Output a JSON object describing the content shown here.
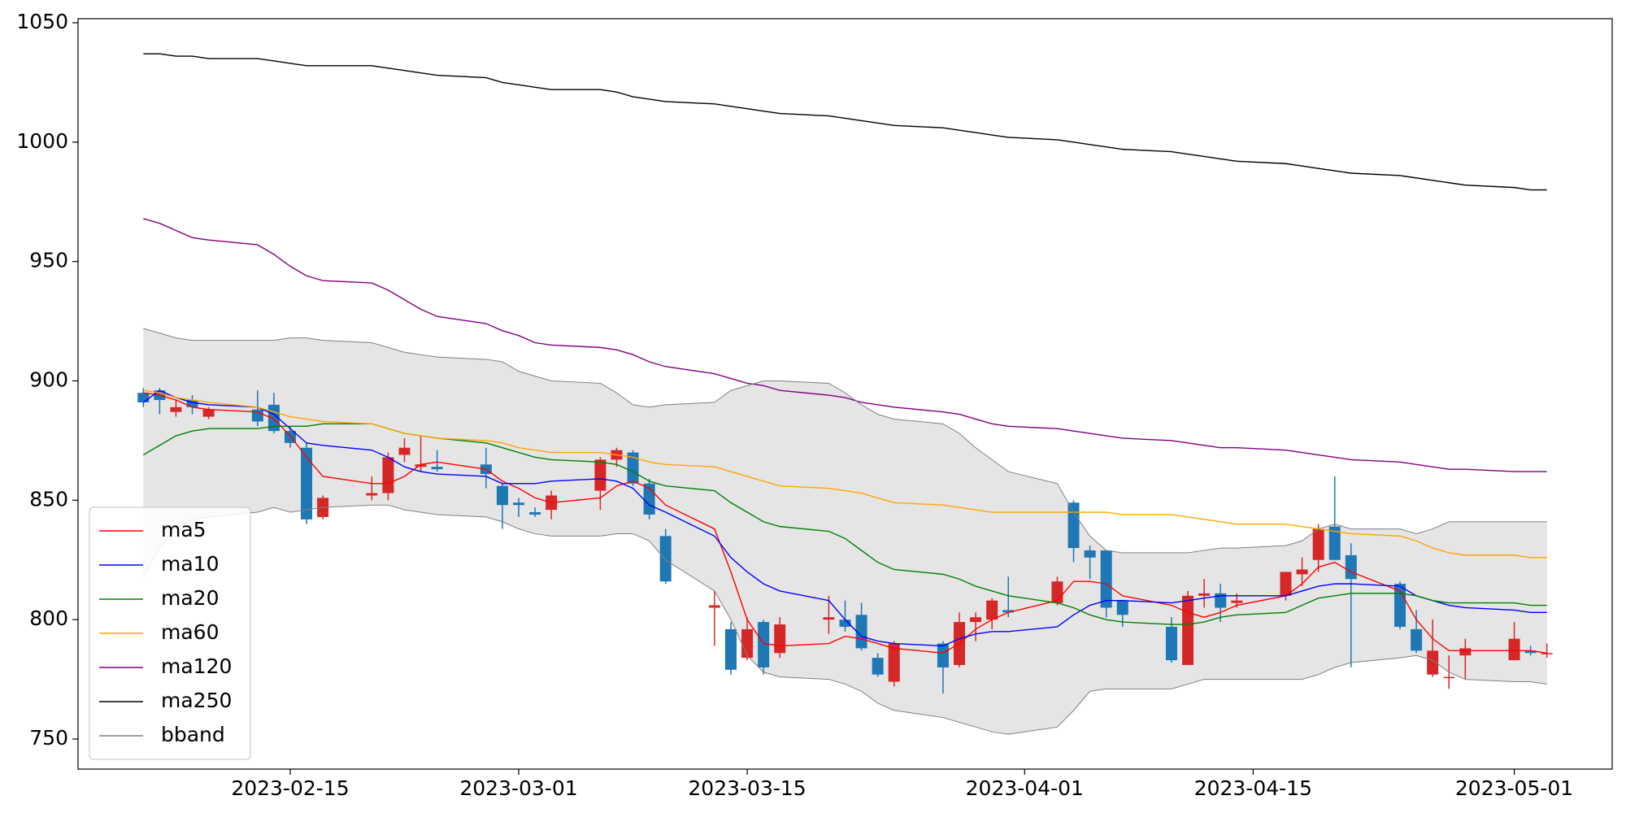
{
  "chart_data": {
    "type": "candlestick",
    "x": [
      "2023-02-06",
      "2023-02-07",
      "2023-02-08",
      "2023-02-09",
      "2023-02-10",
      "2023-02-13",
      "2023-02-14",
      "2023-02-15",
      "2023-02-16",
      "2023-02-17",
      "2023-02-20",
      "2023-02-21",
      "2023-02-22",
      "2023-02-23",
      "2023-02-24",
      "2023-02-27",
      "2023-02-28",
      "2023-03-01",
      "2023-03-02",
      "2023-03-03",
      "2023-03-06",
      "2023-03-07",
      "2023-03-08",
      "2023-03-09",
      "2023-03-10",
      "2023-03-13",
      "2023-03-14",
      "2023-03-15",
      "2023-03-16",
      "2023-03-17",
      "2023-03-20",
      "2023-03-21",
      "2023-03-22",
      "2023-03-23",
      "2023-03-24",
      "2023-03-27",
      "2023-03-28",
      "2023-03-29",
      "2023-03-30",
      "2023-03-31",
      "2023-04-03",
      "2023-04-04",
      "2023-04-05",
      "2023-04-06",
      "2023-04-07",
      "2023-04-10",
      "2023-04-11",
      "2023-04-12",
      "2023-04-13",
      "2023-04-14",
      "2023-04-17",
      "2023-04-18",
      "2023-04-19",
      "2023-04-20",
      "2023-04-21",
      "2023-04-24",
      "2023-04-25",
      "2023-04-26",
      "2023-04-27",
      "2023-04-28",
      "2023-05-01",
      "2023-05-02",
      "2023-05-03"
    ],
    "open": [
      895,
      896,
      887,
      892,
      885,
      888,
      890,
      879,
      872,
      843,
      852,
      853,
      869,
      864,
      864,
      865,
      856,
      849,
      845,
      846,
      854,
      867,
      870,
      857,
      835,
      805,
      796,
      784,
      799,
      786,
      800,
      800,
      802,
      784,
      774,
      790,
      781,
      799,
      800,
      804,
      807,
      849,
      829,
      829,
      808,
      797,
      781,
      810,
      811,
      807,
      810,
      819,
      825,
      839,
      827,
      815,
      796,
      777,
      776,
      785,
      783,
      787,
      786
    ],
    "high": [
      897,
      897,
      892,
      894,
      889,
      896,
      895,
      881,
      874,
      852,
      860,
      870,
      876,
      877,
      871,
      872,
      857,
      851,
      847,
      854,
      868,
      872,
      871,
      859,
      838,
      812,
      799,
      801,
      800,
      801,
      810,
      808,
      807,
      786,
      791,
      791,
      803,
      803,
      809,
      818,
      818,
      850,
      831,
      829,
      808,
      801,
      812,
      817,
      815,
      811,
      820,
      826,
      840,
      860,
      832,
      816,
      804,
      800,
      785,
      792,
      799,
      789,
      790
    ],
    "low": [
      889,
      886,
      885,
      886,
      884,
      881,
      878,
      872,
      840,
      842,
      850,
      850,
      866,
      862,
      862,
      855,
      838,
      843,
      843,
      842,
      846,
      864,
      856,
      842,
      815,
      789,
      777,
      783,
      777,
      784,
      794,
      795,
      787,
      776,
      772,
      769,
      780,
      791,
      796,
      801,
      806,
      824,
      817,
      801,
      797,
      782,
      781,
      805,
      799,
      805,
      808,
      814,
      820,
      825,
      780,
      796,
      786,
      776,
      771,
      775,
      783,
      785,
      784
    ],
    "close": [
      891,
      892,
      889,
      889,
      888,
      883,
      879,
      874,
      842,
      851,
      853,
      868,
      872,
      865,
      863,
      861,
      848,
      848,
      844,
      852,
      867,
      871,
      857,
      844,
      816,
      806,
      779,
      796,
      780,
      798,
      801,
      797,
      788,
      777,
      790,
      780,
      799,
      801,
      808,
      803,
      816,
      830,
      826,
      805,
      802,
      783,
      810,
      811,
      805,
      808,
      820,
      821,
      838,
      825,
      817,
      797,
      787,
      787,
      776,
      788,
      792,
      786,
      786
    ],
    "up_color": "#d62728",
    "down_color": "#1f77b4",
    "series": [
      {
        "name": "ma5",
        "color": "#ff0000",
        "values": [
          895,
          894,
          892,
          889,
          888,
          887,
          884,
          877,
          868,
          860,
          857,
          857,
          860,
          865,
          866,
          863,
          858,
          855,
          851,
          849,
          851,
          856,
          858,
          855,
          848,
          838,
          820,
          800,
          790,
          789,
          790,
          793,
          792,
          790,
          788,
          786,
          790,
          796,
          800,
          803,
          808,
          816,
          816,
          815,
          810,
          806,
          803,
          801,
          803,
          806,
          810,
          815,
          822,
          824,
          820,
          812,
          800,
          792,
          787,
          787,
          787,
          787,
          786
        ]
      },
      {
        "name": "ma10",
        "color": "#0000ff",
        "values": [
          891,
          896,
          893,
          891,
          890,
          889,
          886,
          880,
          874,
          873,
          871,
          868,
          864,
          862,
          861,
          860,
          857,
          857,
          857,
          858,
          859,
          858,
          855,
          848,
          845,
          835,
          826,
          820,
          815,
          812,
          808,
          800,
          793,
          791,
          790,
          789,
          792,
          794,
          795,
          795,
          797,
          802,
          806,
          808,
          808,
          807,
          808,
          809,
          810,
          810,
          810,
          812,
          814,
          815,
          815,
          814,
          810,
          808,
          806,
          805,
          804,
          803,
          803
        ]
      },
      {
        "name": "ma20",
        "color": "#008000",
        "values": [
          869,
          873,
          877,
          879,
          880,
          880,
          881,
          881,
          881,
          882,
          882,
          880,
          878,
          877,
          876,
          874,
          872,
          870,
          868,
          867,
          866,
          865,
          862,
          858,
          856,
          854,
          849,
          845,
          841,
          839,
          837,
          834,
          829,
          824,
          821,
          819,
          817,
          814,
          812,
          810,
          807,
          805,
          802,
          800,
          799,
          798,
          798,
          799,
          801,
          802,
          803,
          806,
          809,
          810,
          811,
          811,
          810,
          808,
          807,
          807,
          807,
          806,
          806
        ]
      },
      {
        "name": "ma60",
        "color": "#ffa500",
        "values": [
          896,
          895,
          893,
          892,
          891,
          889,
          887,
          885,
          884,
          883,
          882,
          880,
          878,
          877,
          876,
          875,
          874,
          872,
          871,
          870,
          870,
          869,
          868,
          866,
          865,
          864,
          862,
          860,
          858,
          856,
          855,
          854,
          853,
          851,
          849,
          848,
          847,
          846,
          845,
          845,
          845,
          845,
          845,
          845,
          844,
          844,
          843,
          842,
          841,
          840,
          840,
          839,
          838,
          837,
          836,
          835,
          833,
          830,
          828,
          827,
          827,
          826,
          826
        ]
      },
      {
        "name": "ma120",
        "color": "#800080",
        "values": [
          968,
          966,
          963,
          960,
          959,
          957,
          953,
          948,
          944,
          942,
          941,
          938,
          934,
          930,
          927,
          924,
          921,
          919,
          916,
          915,
          914,
          913,
          911,
          908,
          906,
          903,
          901,
          899,
          898,
          896,
          894,
          893,
          891,
          890,
          889,
          887,
          886,
          884,
          882,
          881,
          880,
          879,
          878,
          877,
          876,
          875,
          874,
          873,
          872,
          872,
          871,
          870,
          869,
          868,
          867,
          866,
          865,
          864,
          863,
          863,
          862,
          862,
          862
        ]
      },
      {
        "name": "ma250",
        "color": "#000000",
        "values": [
          1037,
          1037,
          1036,
          1036,
          1035,
          1035,
          1034,
          1033,
          1032,
          1032,
          1032,
          1031,
          1030,
          1029,
          1028,
          1027,
          1025,
          1024,
          1023,
          1022,
          1022,
          1021,
          1019,
          1018,
          1017,
          1016,
          1015,
          1014,
          1013,
          1012,
          1011,
          1010,
          1009,
          1008,
          1007,
          1006,
          1005,
          1004,
          1003,
          1002,
          1001,
          1000,
          999,
          998,
          997,
          996,
          995,
          994,
          993,
          992,
          991,
          990,
          989,
          988,
          987,
          986,
          985,
          984,
          983,
          982,
          981,
          980,
          980
        ]
      }
    ],
    "band": {
      "name": "bband",
      "color": "#808080",
      "fill": "#e5e5e5",
      "upper": [
        922,
        920,
        918,
        917,
        917,
        917,
        917,
        918,
        918,
        917,
        916,
        914,
        912,
        911,
        910,
        909,
        908,
        904,
        902,
        900,
        899,
        895,
        890,
        889,
        890,
        891,
        896,
        898,
        900,
        900,
        899,
        895,
        890,
        886,
        884,
        882,
        878,
        872,
        867,
        862,
        857,
        845,
        835,
        829,
        828,
        828,
        828,
        829,
        830,
        830,
        831,
        833,
        838,
        840,
        838,
        838,
        836,
        838,
        841,
        841,
        841,
        841,
        841
      ],
      "lower": [
        818,
        830,
        838,
        842,
        843,
        845,
        847,
        845,
        846,
        847,
        848,
        848,
        846,
        845,
        844,
        843,
        841,
        838,
        836,
        835,
        835,
        836,
        836,
        833,
        825,
        812,
        800,
        785,
        778,
        776,
        775,
        773,
        770,
        765,
        762,
        759,
        757,
        755,
        753,
        752,
        755,
        762,
        770,
        771,
        771,
        771,
        773,
        775,
        775,
        775,
        775,
        775,
        777,
        780,
        782,
        784,
        785,
        783,
        778,
        775,
        774,
        774,
        773
      ]
    },
    "xlim": [
      "2023-02-02",
      "2023-05-07"
    ],
    "xticks": [
      "2023-02-15",
      "2023-03-01",
      "2023-03-15",
      "2023-04-01",
      "2023-04-15",
      "2023-05-01"
    ],
    "ylim": [
      737.4,
      1051.7
    ],
    "yticks": [
      750,
      800,
      850,
      900,
      950,
      1000,
      1050
    ],
    "legend": "lower left",
    "grid": false
  }
}
